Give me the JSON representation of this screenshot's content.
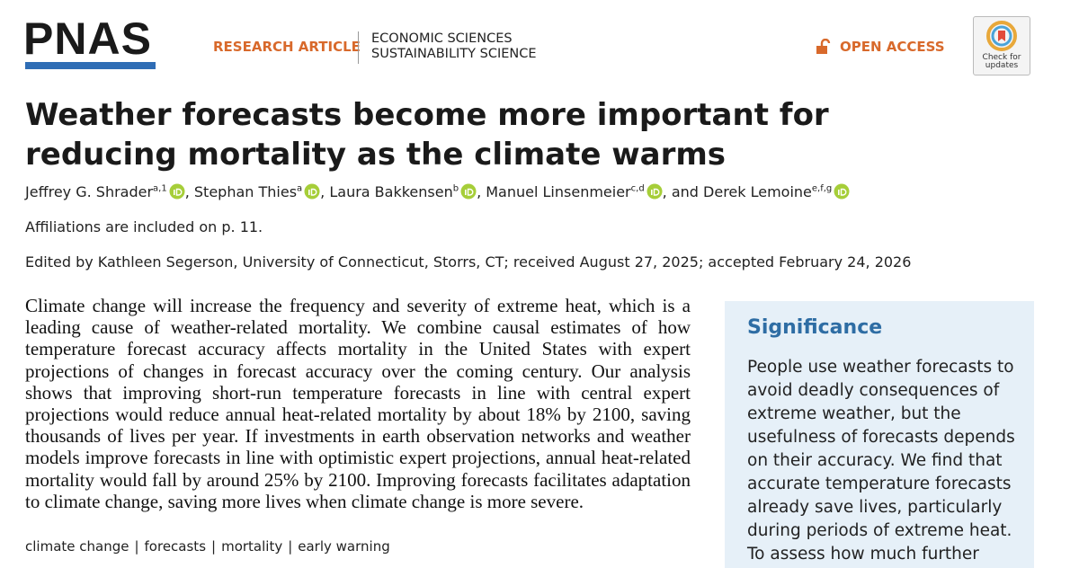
{
  "header": {
    "logo": "PNAS",
    "article_type": "RESEARCH ARTICLE",
    "sections": [
      "ECONOMIC SCIENCES",
      "SUSTAINABILITY SCIENCE"
    ],
    "access": "OPEN ACCESS",
    "badge": [
      "Check for",
      "updates"
    ]
  },
  "title": "Weather forecasts become more important for reducing mortality as the climate warms",
  "authors": [
    {
      "name": "Jeffrey G. Shrader",
      "sup": "a,1"
    },
    {
      "name": "Stephan Thies",
      "sup": "a"
    },
    {
      "name": "Laura Bakkensen",
      "sup": "b"
    },
    {
      "name": "Manuel Linsenmeier",
      "sup": "c,d"
    },
    {
      "name": "Derek Lemoine",
      "sup": "e,f,g"
    }
  ],
  "author_separators": [
    ", ",
    ", ",
    ", ",
    ", and "
  ],
  "affiliations": "Affiliations are included on p. 11.",
  "edited": "Edited by Kathleen Segerson, University of Connecticut, Storrs, CT; received August 27, 2025; accepted February 24, 2026",
  "abstract": "Climate change will increase the frequency and severity of extreme heat, which is a leading cause of weather-related mortality. We combine causal estimates of how temperature forecast accuracy affects mortality in the United States with expert projections of changes in forecast accuracy over the coming century. Our analysis shows that improving short-run temperature forecasts in line with central expert projections would reduce annual heat-related mortality by about 18% by 2100, saving thousands of lives per year. If investments in earth observation networks and weather models improve forecasts in line with optimistic expert projections, annual heat-related mortality would fall by around 25% by 2100. Improving forecasts facilitates adaptation to climate change, saving more lives when climate change is more severe.",
  "keywords": [
    "climate change",
    "forecasts",
    "mortality",
    "early warning"
  ],
  "keyword_separator": "|",
  "significance": {
    "title": "Significance",
    "text": "People use weather forecasts to avoid deadly consequences of extreme weather, but the usefulness of forecasts depends on their accuracy. We find that accurate temperature forecasts already save lives, particularly during periods of extreme heat. To assess how much further"
  }
}
